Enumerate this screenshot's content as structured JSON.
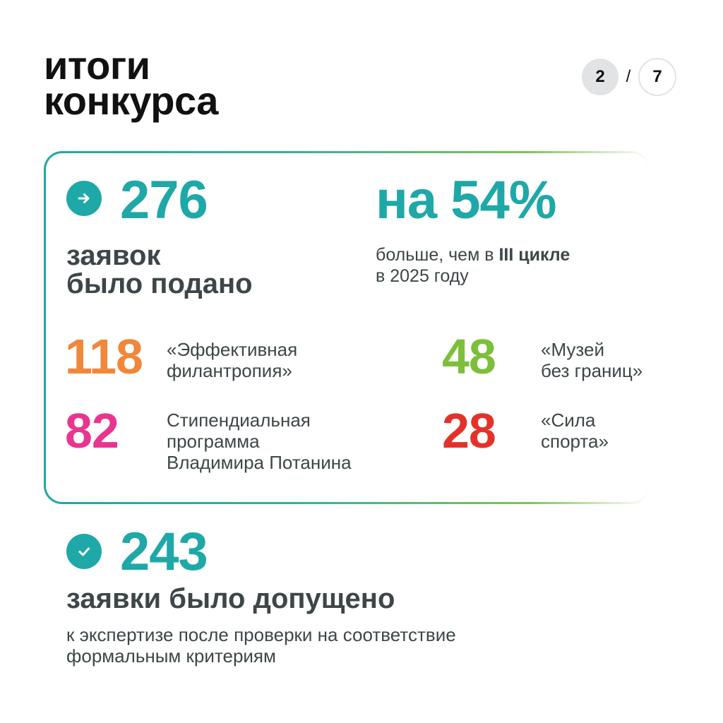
{
  "header": {
    "title_line1": "итоги",
    "title_line2": "конкурса",
    "pager": {
      "current": "2",
      "separator": "/",
      "total": "7"
    }
  },
  "submitted": {
    "value": "276",
    "label_line1": "заявок",
    "label_line2": "было подано",
    "icon": "arrow-right-icon"
  },
  "growth": {
    "value": "на 54%",
    "note_prefix": "больше, чем в ",
    "note_bold": "III цикле",
    "note_line2": "в 2025  году"
  },
  "programs": [
    {
      "value": "118",
      "label_line1": "«Эффективная",
      "label_line2": "филантропия»",
      "label_line3": "",
      "color": "#f0873a"
    },
    {
      "value": "48",
      "label_line1": "«Музей",
      "label_line2": "без границ»",
      "label_line3": "",
      "color": "#7cbf3a"
    },
    {
      "value": "82",
      "label_line1": "Стипендиальная",
      "label_line2": "программа",
      "label_line3": "Владимира Потанина",
      "color": "#e8358f"
    },
    {
      "value": "28",
      "label_line1": "«Сила",
      "label_line2": "спорта»",
      "label_line3": "",
      "color": "#e2332b"
    }
  ],
  "admitted": {
    "value": "243",
    "label": "заявки было допущено",
    "note_line1": "к экспертизе после проверки на соответствие",
    "note_line2": "формальным критериям",
    "icon": "checkmark-icon"
  },
  "colors": {
    "accent": "#1ea8a7",
    "text_dark": "#3d4648",
    "title": "#111111"
  }
}
